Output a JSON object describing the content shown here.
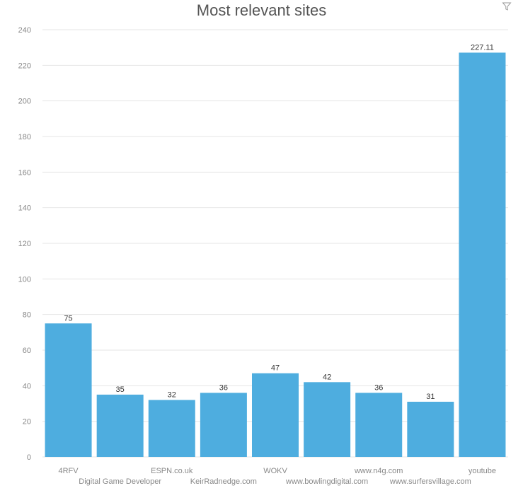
{
  "chart_data": {
    "type": "bar",
    "title": "Most relevant sites",
    "categories": [
      "4RFV",
      "Digital Game Developer",
      "ESPN.co.uk",
      "KeirRadnedge.com",
      "WOKV",
      "www.bowlingdigital.com",
      "www.n4g.com",
      "www.surfersvillage.com",
      "youtube"
    ],
    "values": [
      75,
      35,
      32,
      36,
      47,
      42,
      36,
      31,
      227.11
    ],
    "value_labels": [
      "75",
      "35",
      "32",
      "36",
      "47",
      "42",
      "36",
      "31",
      "227.11"
    ],
    "ylim": [
      0,
      240
    ],
    "yticks": [
      0,
      20,
      40,
      60,
      80,
      100,
      120,
      140,
      160,
      180,
      200,
      220,
      240
    ],
    "xlabel": "",
    "ylabel": "",
    "grid": true,
    "bar_color": "#4eaddf"
  },
  "toolbar": {
    "filter_icon": "filter-icon"
  }
}
